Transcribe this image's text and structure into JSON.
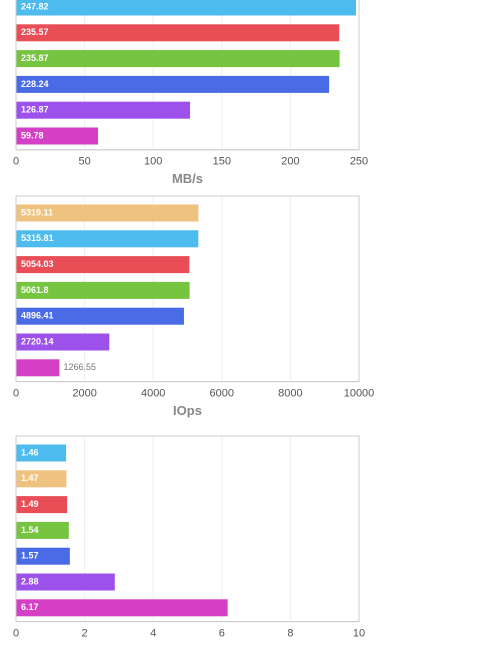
{
  "chart_data": [
    {
      "type": "bar",
      "orientation": "horizontal",
      "values": [
        247.82,
        235.57,
        235.87,
        228.24,
        126.87,
        59.78
      ],
      "colors": [
        "#4dbbee",
        "#e94e57",
        "#76c43f",
        "#4a6be6",
        "#9b51ea",
        "#d43fc6"
      ],
      "xlim": [
        0,
        250
      ],
      "xticks": [
        0,
        50,
        100,
        150,
        200,
        250
      ],
      "x_label": "MB/s",
      "grid": true
    },
    {
      "type": "bar",
      "orientation": "horizontal",
      "values": [
        5319.11,
        5315.81,
        5054.03,
        5061.8,
        4896.41,
        2720.14,
        1266.55
      ],
      "colors": [
        "#f0c27f",
        "#4dbbee",
        "#e94e57",
        "#76c43f",
        "#4a6be6",
        "#9b51ea",
        "#d43fc6"
      ],
      "xlim": [
        0,
        10000
      ],
      "xticks": [
        0,
        2000,
        4000,
        6000,
        8000,
        10000
      ],
      "x_label": "IOps",
      "grid": true
    },
    {
      "type": "bar",
      "orientation": "horizontal",
      "values": [
        1.46,
        1.47,
        1.49,
        1.54,
        1.57,
        2.88,
        6.17
      ],
      "colors": [
        "#4dbbee",
        "#f0c27f",
        "#e94e57",
        "#76c43f",
        "#4a6be6",
        "#9b51ea",
        "#d43fc6"
      ],
      "xlim": [
        0,
        10
      ],
      "xticks": [
        0,
        2,
        4,
        6,
        8,
        10
      ],
      "grid": true
    }
  ]
}
